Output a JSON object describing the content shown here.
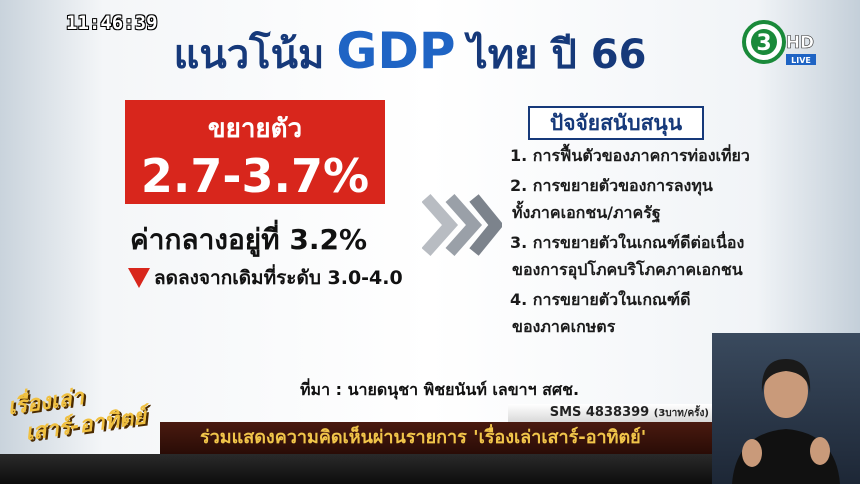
{
  "clock": "11:46:39",
  "channel": {
    "number": "3",
    "hd": "HD",
    "live": "LIVE"
  },
  "title": {
    "parts": [
      "แนวโน้ม",
      "GDP",
      "ไทย ปี 66"
    ]
  },
  "growth": {
    "label": "ขยายตัว",
    "range": "2.7-3.7%",
    "midpoint": "ค่ากลางอยู่ที่ 3.2%",
    "revision": "ลดลงจากเดิมที่ระดับ 3.0-4.0"
  },
  "factors": {
    "heading": "ปัจจัยสนับสนุน",
    "items": [
      [
        "1. การฟื้นตัวของภาคการท่องเที่ยว"
      ],
      [
        "2. การขยายตัวของการลงทุน",
        "ทั้งภาคเอกชน/ภาครัฐ"
      ],
      [
        "3. การขยายตัวในเกณฑ์ดีต่อเนื่อง",
        "ของการอุปโภคบริโภคภาคเอกชน"
      ],
      [
        "4. การขยายตัวในเกณฑ์ดี",
        "ของภาคเกษตร"
      ]
    ]
  },
  "source": "ที่มา : นายดนุชา พิชยนันท์ เลขาฯ สศช.",
  "sms": {
    "number": "SMS 4838399",
    "price": "(3บาท/ครั้ง)"
  },
  "program": {
    "line1": "เรื่องเล่า",
    "line2": "เสาร์-อาทิตย์"
  },
  "ticker": "ร่วมแสดงความคิดเห็นผ่านรายการ 'เรื่องเล่าเสาร์-อาทิตย์'"
}
